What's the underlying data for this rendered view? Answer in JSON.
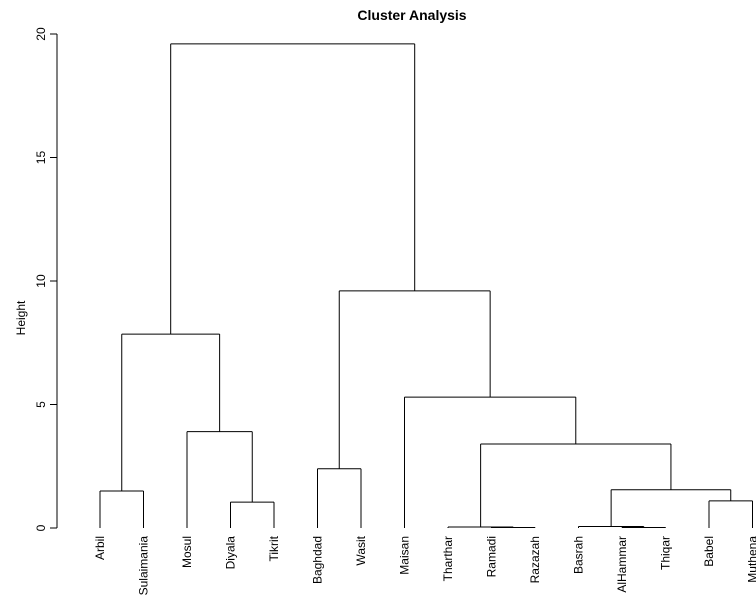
{
  "chart_data": {
    "type": "dendrogram",
    "title": "Cluster Analysis",
    "ylabel": "Height",
    "ylim": [
      0,
      20
    ],
    "yticks": [
      0,
      5,
      10,
      15,
      20
    ],
    "leaves": [
      "Arbil",
      "Sulaimania",
      "Mosul",
      "Diyala",
      "Tikrit",
      "Baghdad",
      "Wasit",
      "Maisan",
      "Tharthar",
      "Ramadi",
      "Razazah",
      "Basrah",
      "AlHammar",
      "Thiqar",
      "Babel",
      "Muthena"
    ],
    "merges": [
      {
        "id": "n1",
        "left": "Arbil",
        "right": "Sulaimania",
        "height": 1.5
      },
      {
        "id": "n2",
        "left": "Diyala",
        "right": "Tikrit",
        "height": 1.05
      },
      {
        "id": "n3",
        "left": "Mosul",
        "right": "n2",
        "height": 3.9
      },
      {
        "id": "n4",
        "left": "n1",
        "right": "n3",
        "height": 7.85
      },
      {
        "id": "n5",
        "left": "Baghdad",
        "right": "Wasit",
        "height": 2.4
      },
      {
        "id": "n6",
        "left": "Ramadi",
        "right": "Razazah",
        "height": 0.02
      },
      {
        "id": "n7",
        "left": "Tharthar",
        "right": "n6",
        "height": 0.04
      },
      {
        "id": "n8",
        "left": "AlHammar",
        "right": "Thiqar",
        "height": 0.02
      },
      {
        "id": "n9",
        "left": "Basrah",
        "right": "n8",
        "height": 0.06
      },
      {
        "id": "n10",
        "left": "Babel",
        "right": "Muthena",
        "height": 1.1
      },
      {
        "id": "n11",
        "left": "n9",
        "right": "n10",
        "height": 1.55
      },
      {
        "id": "n12",
        "left": "n7",
        "right": "n11",
        "height": 3.4
      },
      {
        "id": "n13",
        "left": "Maisan",
        "right": "n12",
        "height": 5.3
      },
      {
        "id": "n14",
        "left": "n5",
        "right": "n13",
        "height": 9.6
      },
      {
        "id": "n15",
        "left": "n4",
        "right": "n14",
        "height": 19.6
      }
    ]
  }
}
